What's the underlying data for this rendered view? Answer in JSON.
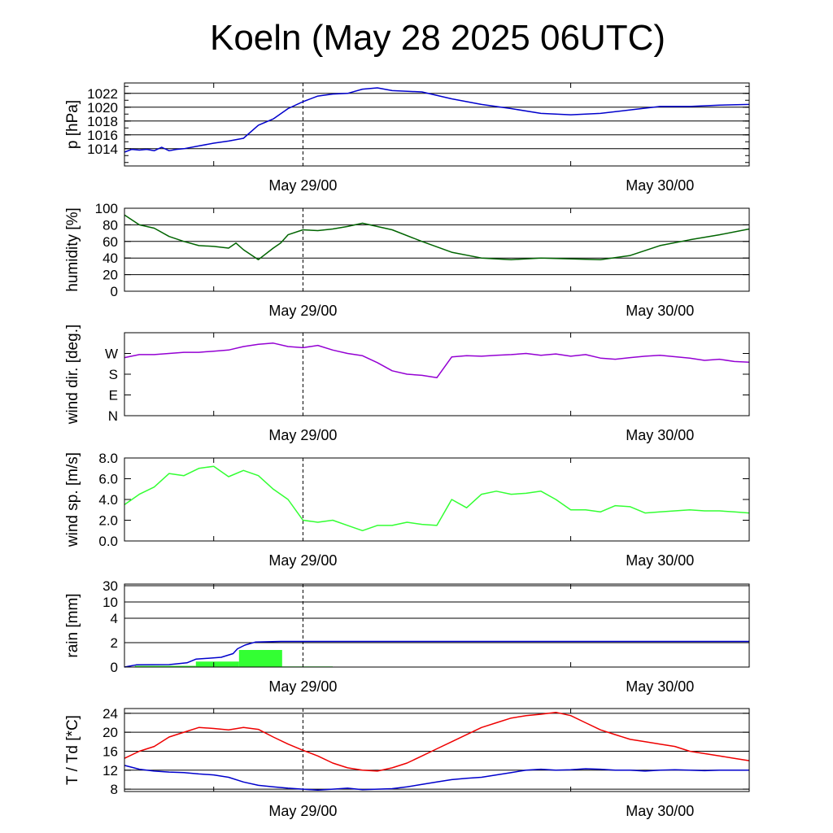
{
  "title": "Koeln (May 28 2025 06UTC)",
  "time_axis": {
    "start_hour": 6,
    "end_hour": 48,
    "label_hours": [
      18,
      42
    ],
    "dashed_hour": 18,
    "minor_tick_hours": [
      12,
      36
    ],
    "labels": [
      "May 29/00",
      "May 30/00"
    ]
  },
  "colors": {
    "pressure": "#0000cc",
    "humidity": "#006400",
    "wind_dir": "#9400d3",
    "wind_speed": "#33ff33",
    "rain_bar": "#33ff33",
    "rain_accum": "#0000cc",
    "temperature": "#ee0000",
    "dewpoint": "#0000cc"
  },
  "chart_data": [
    {
      "id": "pressure",
      "type": "line",
      "ylabel": "p [hPa]",
      "ylim": [
        1011.5,
        1023.5
      ],
      "yticks": [
        1014,
        1016,
        1018,
        1020,
        1022
      ],
      "ytick_labels": [
        "1014",
        "1016",
        "1018",
        "1020",
        "1022"
      ],
      "grid": true,
      "series": [
        {
          "color_key": "pressure",
          "x": [
            6,
            6.5,
            7,
            7.5,
            8,
            8.5,
            9,
            9.5,
            10,
            11,
            12,
            13,
            14,
            15,
            16,
            17,
            18,
            19,
            20,
            21,
            22,
            23,
            24,
            26,
            28,
            30,
            32,
            34,
            36,
            38,
            40,
            42,
            44,
            46,
            48
          ],
          "y": [
            1013.5,
            1013.9,
            1013.8,
            1013.9,
            1013.7,
            1014.2,
            1013.7,
            1013.9,
            1014.0,
            1014.4,
            1014.8,
            1015.1,
            1015.5,
            1017.4,
            1018.3,
            1019.8,
            1020.8,
            1021.6,
            1021.9,
            1022.0,
            1022.6,
            1022.8,
            1022.4,
            1022.2,
            1021.2,
            1020.4,
            1019.8,
            1019.1,
            1018.9,
            1019.1,
            1019.6,
            1020.1,
            1020.1,
            1020.3,
            1020.4
          ]
        }
      ]
    },
    {
      "id": "humidity",
      "type": "line",
      "ylabel": "humidity [%]",
      "ylim": [
        0,
        100
      ],
      "yticks": [
        0,
        20,
        40,
        60,
        80,
        100
      ],
      "ytick_labels": [
        "0",
        "20",
        "40",
        "60",
        "80",
        "100"
      ],
      "grid": true,
      "series": [
        {
          "color_key": "humidity",
          "x": [
            6,
            7,
            8,
            9,
            10,
            11,
            12,
            13,
            13.5,
            14,
            15,
            16,
            16.5,
            17,
            18,
            19,
            20,
            21,
            22,
            24,
            26,
            28,
            30,
            32,
            34,
            36,
            38,
            40,
            42,
            44,
            46,
            48
          ],
          "y": [
            92,
            80,
            76,
            66,
            60,
            55,
            54,
            52,
            58,
            50,
            38,
            52,
            58,
            68,
            74,
            73,
            75,
            78,
            82,
            74,
            60,
            47,
            40,
            38,
            40,
            39,
            38,
            43,
            55,
            62,
            68,
            75
          ]
        }
      ]
    },
    {
      "id": "wind_dir",
      "type": "line",
      "ylabel": "wind dir. [deg.]",
      "ylim": [
        0,
        360
      ],
      "yticks": [
        0,
        90,
        180,
        270
      ],
      "ytick_labels": [
        "N",
        "E",
        "S",
        "W"
      ],
      "grid": false,
      "series": [
        {
          "color_key": "wind_dir",
          "x": [
            6,
            7,
            8,
            9,
            10,
            11,
            12,
            13,
            14,
            15,
            16,
            17,
            18,
            19,
            20,
            21,
            22,
            23,
            24,
            25,
            26,
            27,
            28,
            29,
            30,
            31,
            32,
            33,
            34,
            35,
            36,
            37,
            38,
            39,
            40,
            41,
            42,
            43,
            44,
            45,
            46,
            47,
            48
          ],
          "y": [
            252,
            265,
            265,
            270,
            275,
            275,
            280,
            285,
            300,
            310,
            315,
            300,
            295,
            305,
            285,
            270,
            260,
            230,
            195,
            180,
            175,
            165,
            255,
            260,
            258,
            262,
            265,
            270,
            262,
            268,
            258,
            265,
            250,
            245,
            252,
            258,
            262,
            256,
            250,
            240,
            245,
            235,
            232
          ]
        }
      ]
    },
    {
      "id": "wind_speed",
      "type": "line",
      "ylabel": "wind sp. [m/s]",
      "ylim": [
        0,
        8
      ],
      "yticks": [
        0,
        2,
        4,
        6,
        8
      ],
      "ytick_labels": [
        "0.0",
        "2.0",
        "4.0",
        "6.0",
        "8.0"
      ],
      "grid": false,
      "series": [
        {
          "color_key": "wind_speed",
          "x": [
            6,
            7,
            8,
            9,
            10,
            11,
            12,
            13,
            14,
            15,
            16,
            17,
            18,
            19,
            20,
            21,
            22,
            23,
            24,
            25,
            26,
            27,
            28,
            29,
            30,
            31,
            32,
            33,
            34,
            35,
            36,
            37,
            38,
            39,
            40,
            41,
            42,
            43,
            44,
            45,
            46,
            47,
            48
          ],
          "y": [
            3.5,
            4.5,
            5.2,
            6.5,
            6.3,
            7.0,
            7.2,
            6.2,
            6.8,
            6.3,
            5.0,
            4.0,
            2.0,
            1.8,
            2.0,
            1.5,
            1.0,
            1.5,
            1.5,
            1.8,
            1.6,
            1.5,
            4.0,
            3.2,
            4.5,
            4.8,
            4.5,
            4.6,
            4.8,
            4.0,
            3.0,
            3.0,
            2.8,
            3.4,
            3.3,
            2.7,
            2.8,
            2.9,
            3.0,
            2.9,
            2.9,
            2.8,
            2.7
          ]
        }
      ]
    },
    {
      "id": "rain",
      "type": "bar+line",
      "ylabel": "rain [mm]",
      "ytick_values": [
        0,
        2,
        4,
        10,
        30
      ],
      "ytick_labels": [
        "0",
        "2",
        "4",
        "10",
        "30"
      ],
      "grid": true,
      "bars": [
        {
          "x0": 6.7,
          "x1": 10.8,
          "value": 0.1
        },
        {
          "x0": 10.8,
          "x1": 13.7,
          "value": 0.45
        },
        {
          "x0": 13.7,
          "x1": 16.6,
          "value": 1.4
        },
        {
          "x0": 16.6,
          "x1": 20.0,
          "value": 0.05
        }
      ],
      "series": [
        {
          "color_key": "rain_accum",
          "x": [
            6,
            6.8,
            9.0,
            10.2,
            10.8,
            12.5,
            13.3,
            13.6,
            14.1,
            14.8,
            16.5,
            20,
            30,
            40,
            48
          ],
          "y": [
            0,
            0.18,
            0.2,
            0.35,
            0.65,
            0.8,
            1.1,
            1.5,
            1.8,
            2.05,
            2.1,
            2.1,
            2.1,
            2.1,
            2.1
          ]
        }
      ]
    },
    {
      "id": "temperature",
      "type": "line",
      "ylabel": "T / Td [*C]",
      "ylim": [
        7.5,
        25
      ],
      "yticks": [
        8,
        12,
        16,
        20,
        24
      ],
      "ytick_labels": [
        "8",
        "12",
        "16",
        "20",
        "24"
      ],
      "grid": true,
      "series": [
        {
          "color_key": "temperature",
          "x": [
            6,
            7,
            8,
            9,
            10,
            11,
            12,
            13,
            14,
            15,
            16,
            17,
            18,
            19,
            20,
            21,
            22,
            23,
            24,
            25,
            26,
            27,
            28,
            29,
            30,
            31,
            32,
            33,
            34,
            35,
            36,
            37,
            38,
            39,
            40,
            41,
            42,
            43,
            44,
            45,
            46,
            47,
            48
          ],
          "y": [
            14.5,
            16.0,
            17.0,
            19.0,
            20.0,
            21.0,
            20.8,
            20.5,
            21.0,
            20.6,
            19.0,
            17.5,
            16.2,
            15.0,
            13.5,
            12.5,
            12.0,
            11.8,
            12.5,
            13.5,
            15.0,
            16.5,
            18.0,
            19.5,
            21.0,
            22.0,
            23.0,
            23.5,
            23.8,
            24.2,
            23.5,
            22.0,
            20.5,
            19.5,
            18.5,
            18.0,
            17.5,
            17.0,
            16.0,
            15.5,
            15.0,
            14.5,
            14.0
          ]
        },
        {
          "color_key": "dewpoint",
          "x": [
            6,
            7,
            8,
            9,
            10,
            11,
            12,
            13,
            14,
            15,
            16,
            17,
            18,
            19,
            20,
            21,
            22,
            23,
            24,
            25,
            26,
            27,
            28,
            29,
            30,
            31,
            32,
            33,
            34,
            35,
            36,
            37,
            38,
            39,
            40,
            41,
            42,
            43,
            44,
            45,
            46,
            47,
            48
          ],
          "y": [
            13.0,
            12.2,
            11.8,
            11.6,
            11.5,
            11.2,
            11.0,
            10.5,
            9.5,
            8.8,
            8.5,
            8.2,
            8.0,
            7.8,
            8.0,
            8.2,
            7.9,
            8.0,
            8.1,
            8.5,
            9.0,
            9.5,
            10.0,
            10.3,
            10.5,
            11.0,
            11.5,
            12.0,
            12.2,
            12.0,
            12.1,
            12.3,
            12.2,
            12.0,
            12.0,
            11.8,
            12.0,
            12.1,
            12.0,
            11.9,
            12.0,
            12.0,
            12.0
          ]
        }
      ]
    }
  ]
}
